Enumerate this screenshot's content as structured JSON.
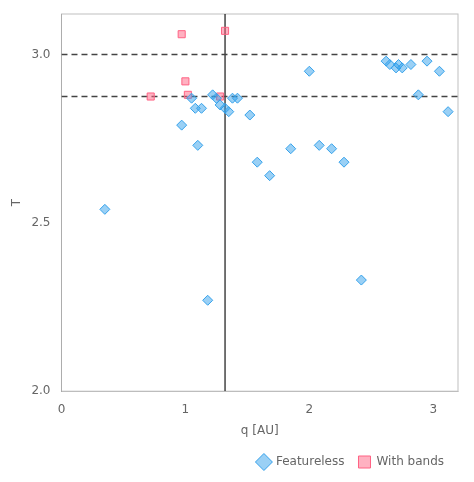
{
  "chart_data": {
    "type": "scatter",
    "xlabel": "q [AU]",
    "ylabel": "T",
    "xlim": [
      0,
      3.2
    ],
    "ylim": [
      2.0,
      3.12
    ],
    "xticks": [
      0,
      1,
      2,
      3
    ],
    "yticks": [
      {
        "value": 2.0,
        "label": "2.0"
      },
      {
        "value": 2.5,
        "label": "2.5"
      },
      {
        "value": 3.0,
        "label": "3.0"
      }
    ],
    "grid": false,
    "legend": "lower right",
    "series": [
      {
        "name": "Featureless",
        "marker": "diamond",
        "x": [
          0.35,
          0.97,
          1.05,
          1.08,
          1.1,
          1.13,
          1.18,
          1.22,
          1.25,
          1.28,
          1.32,
          1.35,
          1.38,
          1.42,
          1.52,
          1.58,
          1.68,
          1.85,
          2.0,
          2.08,
          2.18,
          2.28,
          2.42,
          2.62,
          2.65,
          2.7,
          2.72,
          2.75,
          2.82,
          2.88,
          2.95,
          3.05,
          3.12
        ],
        "y": [
          2.54,
          2.79,
          2.87,
          2.84,
          2.73,
          2.84,
          2.27,
          2.88,
          2.87,
          2.85,
          2.84,
          2.83,
          2.87,
          2.87,
          2.82,
          2.68,
          2.64,
          2.72,
          2.95,
          2.73,
          2.72,
          2.68,
          2.33,
          2.98,
          2.97,
          2.96,
          2.97,
          2.96,
          2.97,
          2.88,
          2.98,
          2.95,
          2.83
        ]
      },
      {
        "name": "With bands",
        "marker": "square",
        "x": [
          0.72,
          0.97,
          1.0,
          1.02,
          1.28,
          1.32
        ],
        "y": [
          2.875,
          3.06,
          2.92,
          2.88,
          2.875,
          3.07
        ]
      }
    ],
    "hlines": [
      {
        "y": 3.0,
        "line_style": "dashed"
      },
      {
        "y": 2.875,
        "line_style": "dashed"
      }
    ],
    "vlines": [
      {
        "x": 1.32,
        "line_style": "solid"
      }
    ]
  }
}
